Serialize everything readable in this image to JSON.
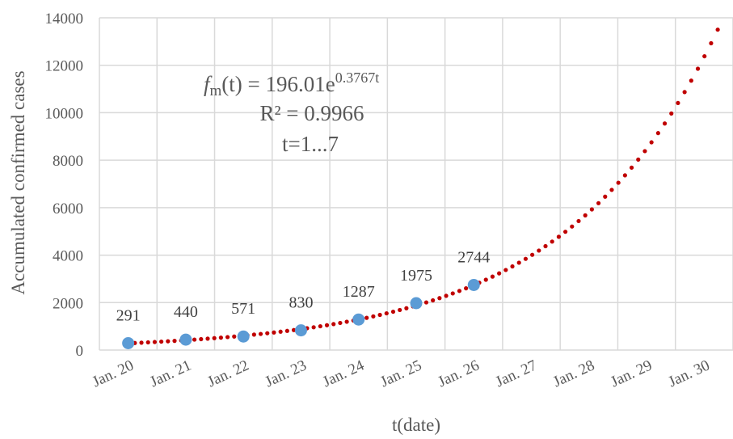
{
  "chart_data": {
    "type": "scatter",
    "xlabel": "t(date)",
    "ylabel": "Accumulated confirmed cases",
    "x_tick_labels": [
      "Jan. 20",
      "Jan. 21",
      "Jan. 22",
      "Jan. 23",
      "Jan. 24",
      "Jan. 25",
      "Jan. 26",
      "Jan. 27",
      "Jan. 28",
      "Jan. 29",
      "Jan. 30"
    ],
    "y_ticks": [
      0,
      2000,
      4000,
      6000,
      8000,
      10000,
      12000,
      14000
    ],
    "ylim": [
      0,
      14000
    ],
    "grid": true,
    "series": [
      {
        "x": [
          "Jan. 20",
          "Jan. 21",
          "Jan. 22",
          "Jan. 23",
          "Jan. 24",
          "Jan. 25",
          "Jan. 26"
        ],
        "values": [
          291,
          440,
          571,
          830,
          1287,
          1975,
          2744
        ],
        "labels": [
          "291",
          "440",
          "571",
          "830",
          "1287",
          "1975",
          "2744"
        ],
        "color": "#5b9bd5"
      }
    ],
    "trendline": {
      "type": "exponential",
      "a": 196.01,
      "b": 0.3767,
      "r_squared": 0.9966,
      "color": "#c00000",
      "style": "dotted"
    },
    "annotation": {
      "f": "f",
      "sub": "m",
      "lhs": "(t) = 196.01e",
      "exponent": "0.3767t",
      "r2": "R² = 0.9966",
      "range": "t=1...7"
    }
  }
}
